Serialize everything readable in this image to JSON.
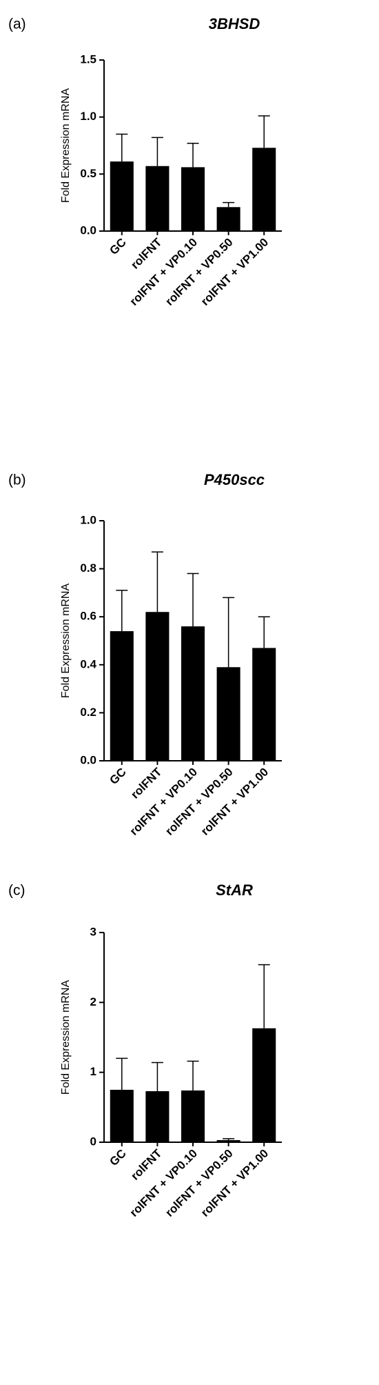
{
  "chart_data": [
    {
      "type": "bar",
      "panel": "(a)",
      "title": "3BHSD",
      "y_label": "Fold Expression mRNA",
      "categories": [
        "GC",
        "rolFNT",
        "rolFNT + VP0.10",
        "rolFNT + VP0.50",
        "rolFNT + VP1.00"
      ],
      "values": [
        0.61,
        0.57,
        0.56,
        0.21,
        0.73
      ],
      "errors": [
        0.24,
        0.25,
        0.21,
        0.04,
        0.28
      ],
      "color": "#000000",
      "ylim": [
        0,
        1.5
      ],
      "yticks": [
        {
          "value": 0,
          "label": "0.0"
        },
        {
          "value": 0.5,
          "label": "0.5"
        },
        {
          "value": 1,
          "label": "1.0"
        },
        {
          "value": 1.5,
          "label": "1.5"
        }
      ]
    },
    {
      "type": "bar",
      "panel": "(b)",
      "title": "P450scc",
      "y_label": "Fold Expression mRNA",
      "categories": [
        "GC",
        "rolFNT",
        "rolFNT + VP0.10",
        "rolFNT + VP0.50",
        "rolFNT + VP1.00"
      ],
      "values": [
        0.54,
        0.62,
        0.56,
        0.39,
        0.47
      ],
      "errors": [
        0.17,
        0.25,
        0.22,
        0.29,
        0.13
      ],
      "color": "#000000",
      "ylim": [
        0,
        1
      ],
      "yticks": [
        {
          "value": 0,
          "label": "0.0"
        },
        {
          "value": 0.2,
          "label": "0.2"
        },
        {
          "value": 0.4,
          "label": "0.4"
        },
        {
          "value": 0.6,
          "label": "0.6"
        },
        {
          "value": 0.8,
          "label": "0.8"
        },
        {
          "value": 1,
          "label": "1.0"
        }
      ]
    },
    {
      "type": "bar",
      "panel": "(c)",
      "title": "StAR",
      "y_label": "Fold Expression mRNA",
      "categories": [
        "GC",
        "rolFNT",
        "rolFNT + VP0.10",
        "rolFNT + VP0.50",
        "rolFNT + VP1.00"
      ],
      "values": [
        0.75,
        0.73,
        0.74,
        0.03,
        1.63
      ],
      "errors": [
        0.45,
        0.41,
        0.42,
        0.02,
        0.91
      ],
      "color": "#000000",
      "ylim": [
        0,
        3
      ],
      "yticks": [
        0,
        1,
        2,
        3
      ]
    }
  ]
}
